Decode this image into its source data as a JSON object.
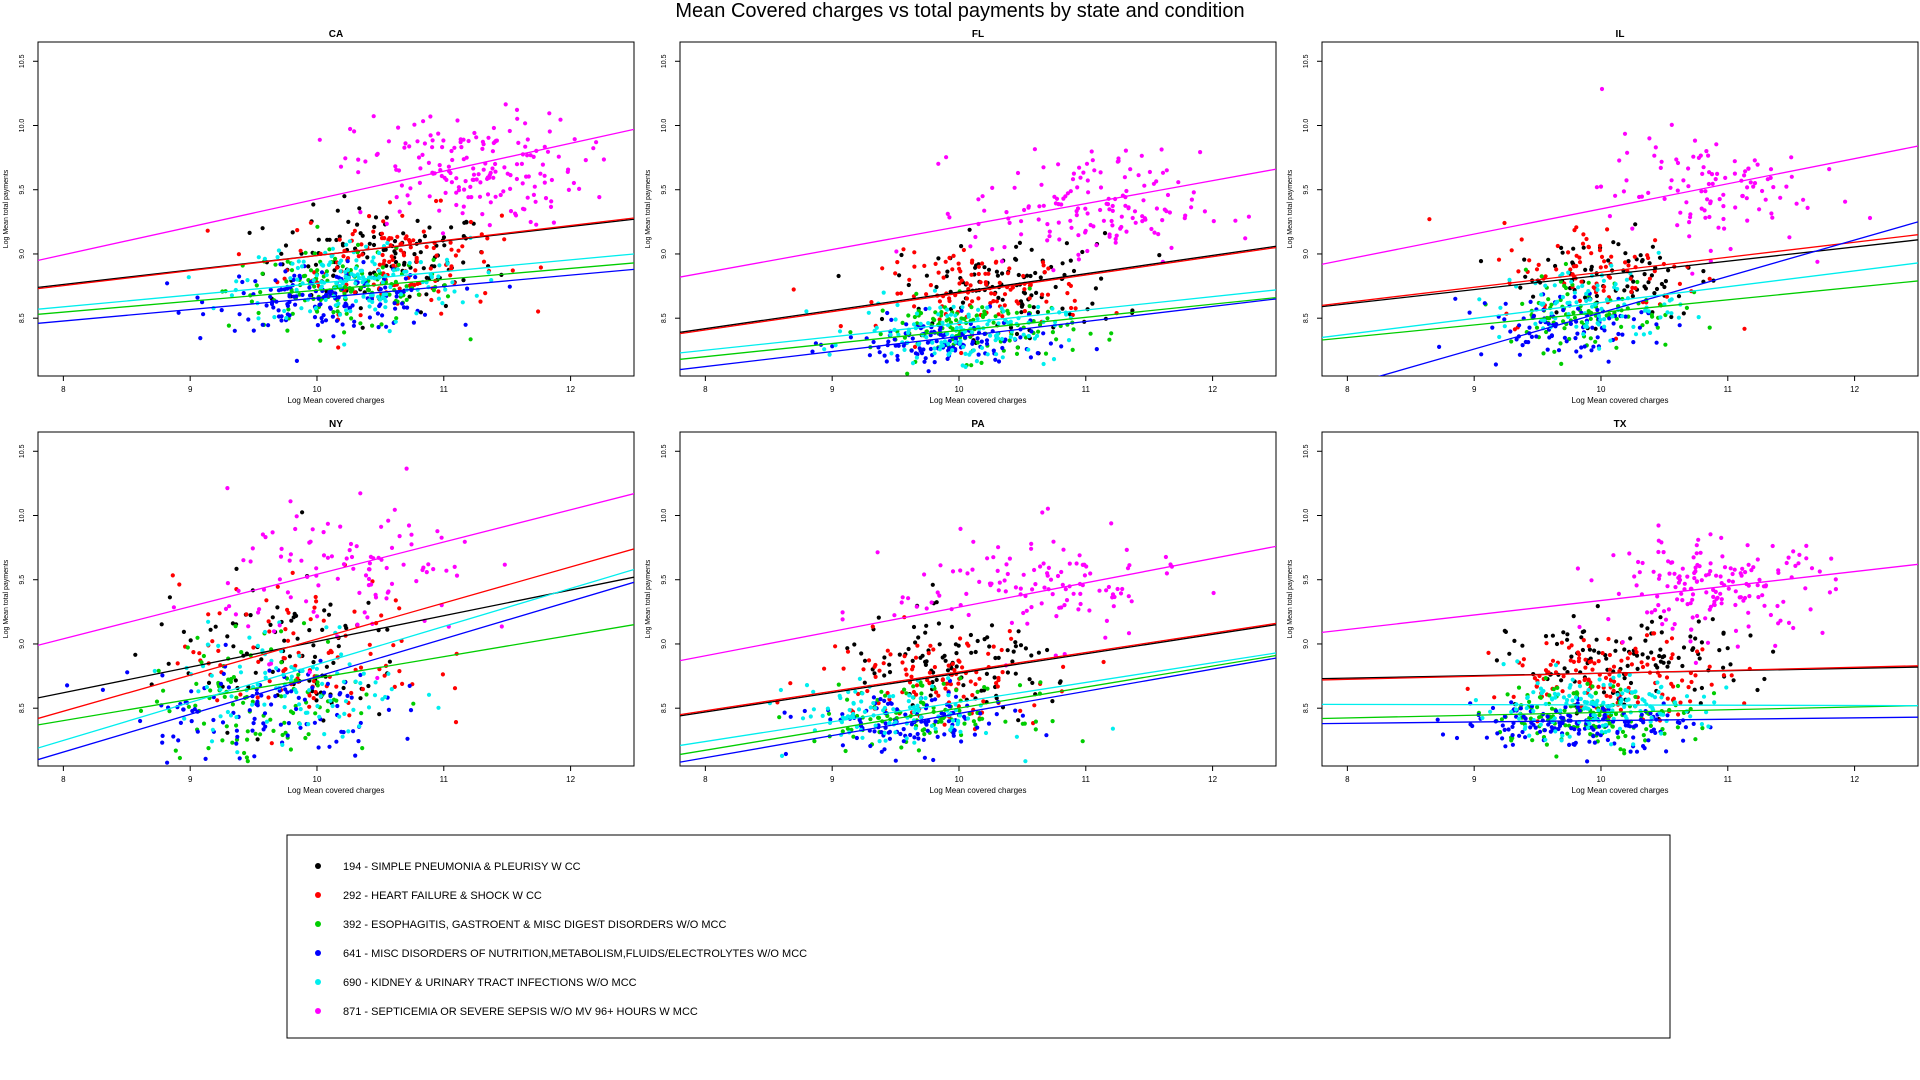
{
  "title": "Mean Covered charges vs total payments by state and condition",
  "chart_data": {
    "type": "scatter",
    "xlabel": "Log Mean covered charges",
    "ylabel": "Log Mean total payments",
    "xlim": [
      7.8,
      12.5
    ],
    "ylim": [
      8.05,
      10.65
    ],
    "xticks": [
      "8",
      "9",
      "10",
      "11",
      "12"
    ],
    "yticks": [
      "8.5",
      "9.0",
      "9.5",
      "10.0",
      "10.5"
    ],
    "grid": false,
    "legend_placement": "bottom-center",
    "series": [
      {
        "code": "194",
        "label": "194 - SIMPLE PNEUMONIA & PLEURISY W CC",
        "color": "#000000"
      },
      {
        "code": "292",
        "label": "292 - HEART FAILURE & SHOCK W CC",
        "color": "#ff0000"
      },
      {
        "code": "392",
        "label": "392 - ESOPHAGITIS, GASTROENT & MISC DIGEST DISORDERS W/O MCC",
        "color": "#00cd00"
      },
      {
        "code": "641",
        "label": "641 - MISC DISORDERS OF NUTRITION,METABOLISM,FLUIDS/ELECTROLYTES W/O MCC",
        "color": "#0000ff"
      },
      {
        "code": "690",
        "label": "690 - KIDNEY & URINARY TRACT INFECTIONS W/O MCC",
        "color": "#00eeee"
      },
      {
        "code": "871",
        "label": "871 - SEPTICEMIA OR SEVERE SEPSIS W/O MV 96+ HOURS W MCC",
        "color": "#ff00ff"
      }
    ],
    "panels": [
      {
        "state": "CA",
        "fits": [
          {
            "series": "194",
            "x": [
              7.8,
              12.5
            ],
            "y": [
              8.74,
              9.27
            ]
          },
          {
            "series": "292",
            "x": [
              7.8,
              12.5
            ],
            "y": [
              8.73,
              9.28
            ]
          },
          {
            "series": "392",
            "x": [
              7.8,
              12.5
            ],
            "y": [
              8.53,
              8.93
            ]
          },
          {
            "series": "641",
            "x": [
              7.8,
              12.5
            ],
            "y": [
              8.46,
              8.88
            ]
          },
          {
            "series": "690",
            "x": [
              7.8,
              12.5
            ],
            "y": [
              8.57,
              9.0
            ]
          },
          {
            "series": "871",
            "x": [
              7.8,
              12.5
            ],
            "y": [
              8.95,
              9.97
            ]
          }
        ],
        "clusters": [
          {
            "series": "194",
            "cx": 10.5,
            "cy": 8.95,
            "sx": 0.45,
            "sy": 0.2,
            "n": 130
          },
          {
            "series": "292",
            "cx": 10.6,
            "cy": 8.95,
            "sx": 0.42,
            "sy": 0.2,
            "n": 140
          },
          {
            "series": "392",
            "cx": 10.2,
            "cy": 8.72,
            "sx": 0.45,
            "sy": 0.15,
            "n": 140
          },
          {
            "series": "641",
            "cx": 10.1,
            "cy": 8.65,
            "sx": 0.45,
            "sy": 0.12,
            "n": 150
          },
          {
            "series": "690",
            "cx": 10.3,
            "cy": 8.78,
            "sx": 0.45,
            "sy": 0.17,
            "n": 150
          },
          {
            "series": "871",
            "cx": 11.2,
            "cy": 9.65,
            "sx": 0.45,
            "sy": 0.22,
            "n": 180
          }
        ]
      },
      {
        "state": "FL",
        "fits": [
          {
            "series": "194",
            "x": [
              7.8,
              12.5
            ],
            "y": [
              8.39,
              9.06
            ]
          },
          {
            "series": "292",
            "x": [
              7.8,
              12.5
            ],
            "y": [
              8.38,
              9.05
            ]
          },
          {
            "series": "392",
            "x": [
              7.8,
              12.5
            ],
            "y": [
              8.18,
              8.66
            ]
          },
          {
            "series": "641",
            "x": [
              7.8,
              12.5
            ],
            "y": [
              8.1,
              8.65
            ]
          },
          {
            "series": "690",
            "x": [
              7.8,
              12.5
            ],
            "y": [
              8.23,
              8.72
            ]
          },
          {
            "series": "871",
            "x": [
              7.8,
              12.5
            ],
            "y": [
              8.82,
              9.66
            ]
          }
        ],
        "clusters": [
          {
            "series": "194",
            "cx": 10.4,
            "cy": 8.75,
            "sx": 0.45,
            "sy": 0.2,
            "n": 110
          },
          {
            "series": "292",
            "cx": 10.2,
            "cy": 8.7,
            "sx": 0.4,
            "sy": 0.15,
            "n": 120
          },
          {
            "series": "392",
            "cx": 10.1,
            "cy": 8.42,
            "sx": 0.4,
            "sy": 0.12,
            "n": 120
          },
          {
            "series": "641",
            "cx": 9.9,
            "cy": 8.3,
            "sx": 0.4,
            "sy": 0.1,
            "n": 130
          },
          {
            "series": "690",
            "cx": 10.0,
            "cy": 8.4,
            "sx": 0.4,
            "sy": 0.12,
            "n": 130
          },
          {
            "series": "871",
            "cx": 11.0,
            "cy": 9.35,
            "sx": 0.45,
            "sy": 0.22,
            "n": 150
          }
        ]
      },
      {
        "state": "IL",
        "fits": [
          {
            "series": "194",
            "x": [
              7.8,
              12.5
            ],
            "y": [
              8.59,
              9.11
            ]
          },
          {
            "series": "292",
            "x": [
              7.8,
              12.5
            ],
            "y": [
              8.6,
              9.15
            ]
          },
          {
            "series": "392",
            "x": [
              7.8,
              12.5
            ],
            "y": [
              8.33,
              8.79
            ]
          },
          {
            "series": "641",
            "x": [
              7.8,
              12.5
            ],
            "y": [
              7.92,
              9.25
            ]
          },
          {
            "series": "690",
            "x": [
              7.8,
              12.5
            ],
            "y": [
              8.35,
              8.93
            ]
          },
          {
            "series": "871",
            "x": [
              7.8,
              12.5
            ],
            "y": [
              8.92,
              9.84
            ]
          }
        ],
        "clusters": [
          {
            "series": "194",
            "cx": 10.1,
            "cy": 8.85,
            "sx": 0.4,
            "sy": 0.18,
            "n": 80
          },
          {
            "series": "292",
            "cx": 10.0,
            "cy": 8.85,
            "sx": 0.4,
            "sy": 0.2,
            "n": 90
          },
          {
            "series": "392",
            "cx": 9.9,
            "cy": 8.55,
            "sx": 0.35,
            "sy": 0.15,
            "n": 90
          },
          {
            "series": "641",
            "cx": 9.7,
            "cy": 8.45,
            "sx": 0.35,
            "sy": 0.13,
            "n": 100
          },
          {
            "series": "690",
            "cx": 9.9,
            "cy": 8.6,
            "sx": 0.35,
            "sy": 0.15,
            "n": 90
          },
          {
            "series": "871",
            "cx": 10.8,
            "cy": 9.5,
            "sx": 0.4,
            "sy": 0.22,
            "n": 110
          }
        ]
      },
      {
        "state": "NY",
        "fits": [
          {
            "series": "194",
            "x": [
              7.8,
              12.5
            ],
            "y": [
              8.58,
              9.52
            ]
          },
          {
            "series": "292",
            "x": [
              7.8,
              12.5
            ],
            "y": [
              8.42,
              9.74
            ]
          },
          {
            "series": "392",
            "x": [
              7.8,
              12.5
            ],
            "y": [
              8.37,
              9.15
            ]
          },
          {
            "series": "641",
            "x": [
              7.8,
              12.5
            ],
            "y": [
              8.1,
              9.48
            ]
          },
          {
            "series": "690",
            "x": [
              7.8,
              12.5
            ],
            "y": [
              8.19,
              9.58
            ]
          },
          {
            "series": "871",
            "x": [
              7.8,
              12.5
            ],
            "y": [
              8.99,
              10.17
            ]
          }
        ],
        "clusters": [
          {
            "series": "194",
            "cx": 9.7,
            "cy": 8.95,
            "sx": 0.5,
            "sy": 0.3,
            "n": 90
          },
          {
            "series": "292",
            "cx": 9.9,
            "cy": 8.9,
            "sx": 0.5,
            "sy": 0.3,
            "n": 100
          },
          {
            "series": "392",
            "cx": 9.6,
            "cy": 8.6,
            "sx": 0.45,
            "sy": 0.25,
            "n": 100
          },
          {
            "series": "641",
            "cx": 9.5,
            "cy": 8.5,
            "sx": 0.5,
            "sy": 0.2,
            "n": 110
          },
          {
            "series": "690",
            "cx": 9.8,
            "cy": 8.65,
            "sx": 0.45,
            "sy": 0.25,
            "n": 100
          },
          {
            "series": "871",
            "cx": 10.3,
            "cy": 9.55,
            "sx": 0.5,
            "sy": 0.3,
            "n": 110
          }
        ]
      },
      {
        "state": "PA",
        "fits": [
          {
            "series": "194",
            "x": [
              7.8,
              12.5
            ],
            "y": [
              8.44,
              9.15
            ]
          },
          {
            "series": "292",
            "x": [
              7.8,
              12.5
            ],
            "y": [
              8.45,
              9.16
            ]
          },
          {
            "series": "392",
            "x": [
              7.8,
              12.5
            ],
            "y": [
              8.14,
              8.91
            ]
          },
          {
            "series": "641",
            "x": [
              7.8,
              12.5
            ],
            "y": [
              8.08,
              8.89
            ]
          },
          {
            "series": "690",
            "x": [
              7.8,
              12.5
            ],
            "y": [
              8.21,
              8.93
            ]
          },
          {
            "series": "871",
            "x": [
              7.8,
              12.5
            ],
            "y": [
              8.87,
              9.76
            ]
          }
        ],
        "clusters": [
          {
            "series": "194",
            "cx": 10.0,
            "cy": 8.8,
            "sx": 0.5,
            "sy": 0.2,
            "n": 100
          },
          {
            "series": "292",
            "cx": 9.8,
            "cy": 8.75,
            "sx": 0.45,
            "sy": 0.18,
            "n": 110
          },
          {
            "series": "392",
            "cx": 9.7,
            "cy": 8.45,
            "sx": 0.4,
            "sy": 0.12,
            "n": 100
          },
          {
            "series": "641",
            "cx": 9.6,
            "cy": 8.38,
            "sx": 0.4,
            "sy": 0.12,
            "n": 110
          },
          {
            "series": "690",
            "cx": 9.5,
            "cy": 8.45,
            "sx": 0.4,
            "sy": 0.12,
            "n": 100
          },
          {
            "series": "871",
            "cx": 10.6,
            "cy": 9.45,
            "sx": 0.55,
            "sy": 0.22,
            "n": 120
          }
        ]
      },
      {
        "state": "TX",
        "fits": [
          {
            "series": "194",
            "x": [
              7.8,
              12.5
            ],
            "y": [
              8.73,
              8.82
            ]
          },
          {
            "series": "292",
            "x": [
              7.8,
              12.5
            ],
            "y": [
              8.72,
              8.83
            ]
          },
          {
            "series": "392",
            "x": [
              7.8,
              12.5
            ],
            "y": [
              8.42,
              8.52
            ]
          },
          {
            "series": "641",
            "x": [
              7.8,
              12.5
            ],
            "y": [
              8.38,
              8.43
            ]
          },
          {
            "series": "690",
            "x": [
              7.8,
              12.5
            ],
            "y": [
              8.53,
              8.52
            ]
          },
          {
            "series": "871",
            "x": [
              7.8,
              12.5
            ],
            "y": [
              9.09,
              9.62
            ]
          }
        ],
        "clusters": [
          {
            "series": "194",
            "cx": 10.2,
            "cy": 8.85,
            "sx": 0.45,
            "sy": 0.18,
            "n": 120
          },
          {
            "series": "292",
            "cx": 10.1,
            "cy": 8.75,
            "sx": 0.45,
            "sy": 0.15,
            "n": 140
          },
          {
            "series": "392",
            "cx": 9.9,
            "cy": 8.45,
            "sx": 0.4,
            "sy": 0.12,
            "n": 140
          },
          {
            "series": "641",
            "cx": 9.8,
            "cy": 8.38,
            "sx": 0.45,
            "sy": 0.1,
            "n": 150
          },
          {
            "series": "690",
            "cx": 9.9,
            "cy": 8.5,
            "sx": 0.45,
            "sy": 0.12,
            "n": 150
          },
          {
            "series": "871",
            "cx": 10.9,
            "cy": 9.45,
            "sx": 0.45,
            "sy": 0.18,
            "n": 170
          }
        ]
      }
    ]
  }
}
